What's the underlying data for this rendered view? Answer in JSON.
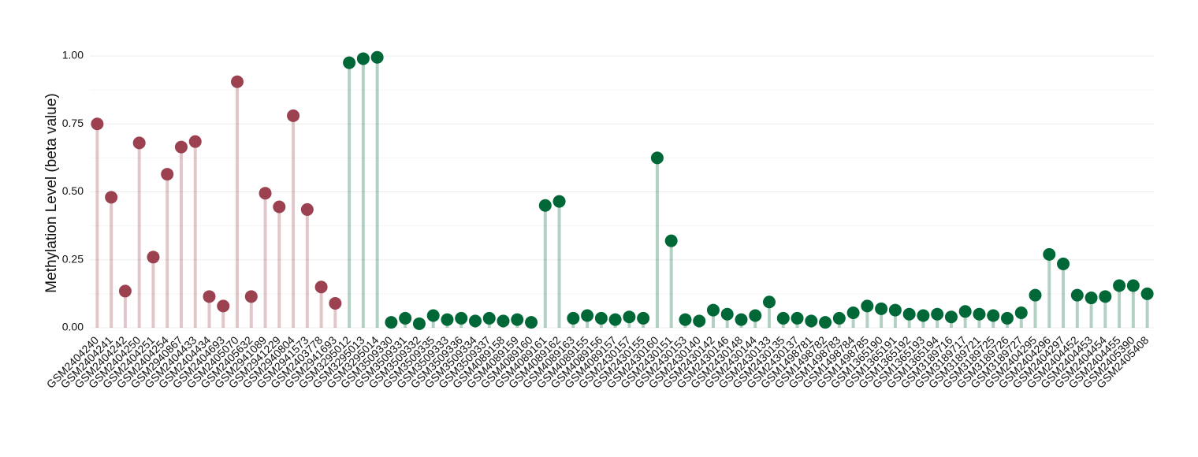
{
  "chart_data": {
    "type": "lollipop",
    "y_label": "Methylation Level (beta value)",
    "categories": [
      "GSM2404240",
      "GSM2404241",
      "GSM2404242",
      "GSM2404250",
      "GSM2404251",
      "GSM2404254",
      "GSM2940867",
      "GSM2404433",
      "GSM2404434",
      "GSM2404693",
      "GSM2405070",
      "GSM2405632",
      "GSM2941089",
      "GSM2941229",
      "GSM2940804",
      "GSM2941573",
      "GSM2403778",
      "GSM2941693",
      "GSM3295012",
      "GSM3295013",
      "GSM3295014",
      "GSM3509330",
      "GSM3509331",
      "GSM3509332",
      "GSM3509335",
      "GSM3509333",
      "GSM3509336",
      "GSM3509334",
      "GSM3509337",
      "GSM4089158",
      "GSM4089159",
      "GSM4089160",
      "GSM4089161",
      "GSM4089162",
      "GSM4089163",
      "GSM4089155",
      "GSM4089156",
      "GSM4089157",
      "GSM2430157",
      "GSM2430155",
      "GSM2430160",
      "GSM2430151",
      "GSM2430153",
      "GSM2430140",
      "GSM2430142",
      "GSM2430146",
      "GSM2430148",
      "GSM2430144",
      "GSM2430133",
      "GSM2430135",
      "GSM2430137",
      "GSM1498781",
      "GSM1498782",
      "GSM1498783",
      "GSM1498784",
      "GSM1498785",
      "GSM1365190",
      "GSM1365191",
      "GSM1365192",
      "GSM1365193",
      "GSM1365194",
      "GSM3189716",
      "GSM3189717",
      "GSM3189721",
      "GSM3189725",
      "GSM3189726",
      "GSM3189727",
      "GSM2404295",
      "GSM2404296",
      "GSM2404297",
      "GSM2404452",
      "GSM2404453",
      "GSM2404454",
      "GSM2404455",
      "GSM2405390",
      "GSM2405408"
    ],
    "series": [
      {
        "color": "#9b4150",
        "values": [
          0.75,
          0.48,
          0.135,
          0.68,
          0.26,
          0.565,
          0.665,
          0.685,
          0.115,
          0.08,
          0.905,
          0.115,
          0.495,
          0.445,
          0.78,
          0.435,
          0.15,
          0.09,
          null,
          null,
          null,
          null,
          null,
          null,
          null,
          null,
          null,
          null,
          null,
          null,
          null,
          null,
          null,
          null,
          null,
          null,
          null,
          null,
          null,
          null,
          null,
          null,
          null,
          null,
          null,
          null,
          null,
          null,
          null,
          null,
          null,
          null,
          null,
          null,
          null,
          null,
          null,
          null,
          null,
          null,
          null,
          null,
          null,
          null,
          null,
          null,
          null,
          null,
          null,
          null,
          null,
          null,
          null,
          null,
          null,
          null
        ]
      },
      {
        "color": "#006837",
        "values": [
          null,
          null,
          null,
          null,
          null,
          null,
          null,
          null,
          null,
          null,
          null,
          null,
          null,
          null,
          null,
          null,
          null,
          null,
          0.975,
          0.99,
          0.995,
          0.02,
          0.035,
          0.015,
          0.045,
          0.03,
          0.035,
          0.025,
          0.035,
          0.025,
          0.03,
          0.02,
          0.45,
          0.465,
          0.035,
          0.045,
          0.035,
          0.03,
          0.04,
          0.035,
          0.625,
          0.32,
          0.03,
          0.025,
          0.065,
          0.05,
          0.03,
          0.045,
          0.095,
          0.035,
          0.035,
          0.025,
          0.02,
          0.035,
          0.055,
          0.08,
          0.07,
          0.065,
          0.05,
          0.045,
          0.05,
          0.04,
          0.06,
          0.05,
          0.045,
          0.035,
          0.055,
          0.12,
          0.27,
          0.235,
          0.12,
          0.11,
          0.115,
          0.155,
          0.155,
          0.125
        ]
      }
    ],
    "ylim": [
      0,
      1
    ],
    "yticks": [
      {
        "value": 0,
        "label": "0.00"
      },
      {
        "value": 0.25,
        "label": "0.25"
      },
      {
        "value": 0.5,
        "label": "0.50"
      },
      {
        "value": 0.75,
        "label": "0.75"
      },
      {
        "value": 1,
        "label": "1.00"
      }
    ],
    "grid": true
  }
}
